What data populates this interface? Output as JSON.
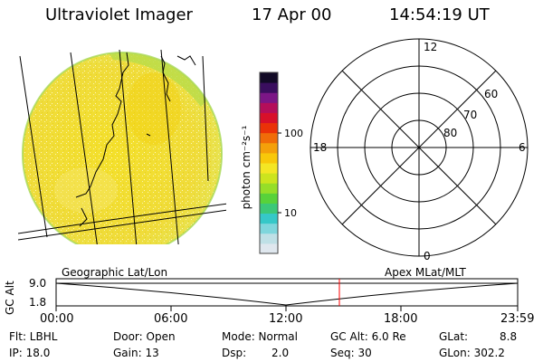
{
  "header": {
    "title": "Ultraviolet Imager",
    "date": "17 Apr 00",
    "time": "14:54:19 UT"
  },
  "colorbar": {
    "unit_label": "photon cm⁻²s⁻¹",
    "tick_labels": [
      "100",
      "10"
    ],
    "colors": [
      "#dfe7ee",
      "#bfe0e6",
      "#7fd6dc",
      "#36c8c8",
      "#3cc878",
      "#58d23a",
      "#96de28",
      "#cce41e",
      "#f4e624",
      "#f8c80a",
      "#f4a00a",
      "#f06c08",
      "#ea3208",
      "#d8102a",
      "#b40e5a",
      "#7c1686",
      "#3a0e5e",
      "#120a26"
    ]
  },
  "polar_plot": {
    "mlt_labels": {
      "top": "12",
      "left": "18",
      "right": "6",
      "bottom": "0"
    },
    "lat_labels": [
      "60",
      "70",
      "80"
    ]
  },
  "timeline": {
    "left_label": "Geographic Lat/Lon",
    "right_label": "Apex MLat/MLT",
    "axis_title": "GC Alt",
    "y_ticks": [
      "9.0",
      "1.8"
    ],
    "x_ticks": [
      "00:00",
      "06:00",
      "12:00",
      "18:00",
      "23:59"
    ],
    "current_time_marker_color": "#ff0000"
  },
  "info": {
    "flt": "Flt: LBHL",
    "ip": "IP: 18.0",
    "door": "Door: Open",
    "gain": "Gain: 13",
    "mode": "Mode: Normal",
    "dsp_label": "Dsp:",
    "dsp_value": "2.0",
    "gcalt": "GC Alt: 6.0 Re",
    "seq": "Seq: 30",
    "glat_label": "GLat:",
    "glat_value": "8.8",
    "glon": "GLon: 302.2"
  }
}
